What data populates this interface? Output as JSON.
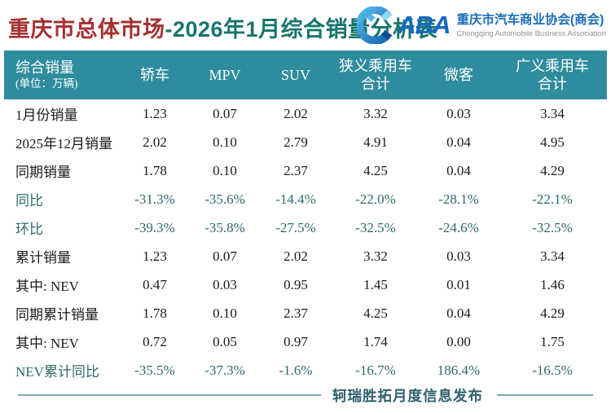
{
  "title": {
    "highlight": "重庆市总体市场",
    "rest": "-2026年1月综合销量分析表"
  },
  "logo": {
    "acronym": "ABA",
    "org_cn": "重庆市汽车商业协会(商会)",
    "org_en": "Chongqing Automobile Business Association"
  },
  "table": {
    "header": {
      "first_col_line1": "综合销量",
      "first_col_line2": "(单位：万辆)",
      "columns": [
        "轿车",
        "MPV",
        "SUV",
        "狭义乘用车\n合计",
        "微客",
        "广义乘用车\n合计"
      ]
    },
    "rows": [
      {
        "label": "1月份销量",
        "values": [
          "1.23",
          "0.07",
          "2.02",
          "3.32",
          "0.03",
          "3.34"
        ],
        "emphasis": false
      },
      {
        "label": "2025年12月销量",
        "values": [
          "2.02",
          "0.10",
          "2.79",
          "4.91",
          "0.04",
          "4.95"
        ],
        "emphasis": false
      },
      {
        "label": "同期销量",
        "values": [
          "1.78",
          "0.10",
          "2.37",
          "4.25",
          "0.04",
          "4.29"
        ],
        "emphasis": false
      },
      {
        "label": "同比",
        "values": [
          "-31.3%",
          "-35.6%",
          "-14.4%",
          "-22.0%",
          "-28.1%",
          "-22.1%"
        ],
        "emphasis": true
      },
      {
        "label": "环比",
        "values": [
          "-39.3%",
          "-35.8%",
          "-27.5%",
          "-32.5%",
          "-24.6%",
          "-32.5%"
        ],
        "emphasis": true
      },
      {
        "label": "累计销量",
        "values": [
          "1.23",
          "0.07",
          "2.02",
          "3.32",
          "0.03",
          "3.34"
        ],
        "emphasis": false
      },
      {
        "label": "其中: NEV",
        "values": [
          "0.47",
          "0.03",
          "0.95",
          "1.45",
          "0.01",
          "1.46"
        ],
        "emphasis": false
      },
      {
        "label": "同期累计销量",
        "values": [
          "1.78",
          "0.10",
          "2.37",
          "4.25",
          "0.04",
          "4.29"
        ],
        "emphasis": false
      },
      {
        "label": "其中: NEV",
        "values": [
          "0.72",
          "0.05",
          "0.97",
          "1.74",
          "0.00",
          "1.75"
        ],
        "emphasis": false
      },
      {
        "label": "NEV累计同比",
        "values": [
          "-35.5%",
          "-37.3%",
          "-1.6%",
          "-16.7%",
          "186.4%",
          "-16.5%"
        ],
        "emphasis": true
      }
    ]
  },
  "footer": {
    "text": "轲瑞胜拓月度信息发布"
  },
  "colors": {
    "accent_teal": "#2e8c9e",
    "emphasis_text": "#2d6a6e",
    "body_text": "#1a1a1a",
    "title_highlight": "#a63030",
    "title_rest": "#17756c",
    "logo_blue": "#1a6cba"
  }
}
